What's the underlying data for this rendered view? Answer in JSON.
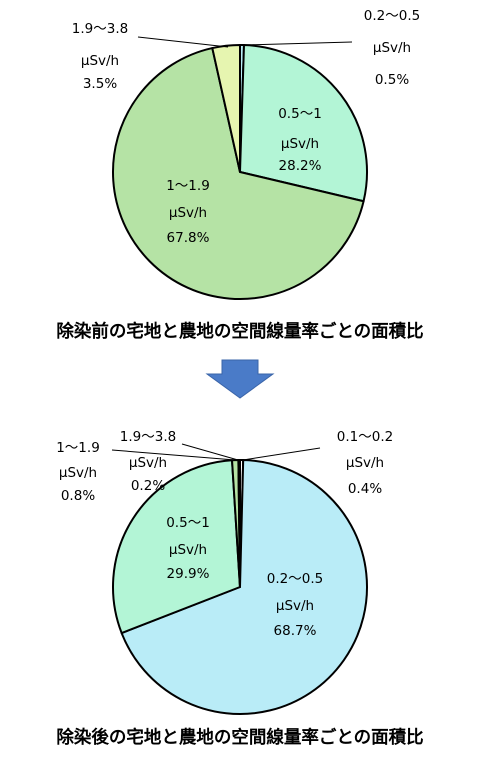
{
  "chart_data": [
    {
      "type": "pie",
      "title": "除染前の宅地と農地の空間線量率ごとの面積比",
      "categories": [
        "0.2～0.5",
        "0.5～1",
        "1～1.9",
        "1.9～3.8"
      ],
      "unit": "μSv/h",
      "values": [
        0.5,
        28.2,
        67.8,
        3.5
      ],
      "value_labels": [
        "0.5%",
        "28.2%",
        "67.8%",
        "3.5%"
      ],
      "colors": [
        "#b9eef7",
        "#b3f5d6",
        "#b5e3a5",
        "#e6f5b0"
      ]
    },
    {
      "type": "pie",
      "title": "除染後の宅地と農地の空間線量率ごとの面積比",
      "categories": [
        "0.1～0.2",
        "0.2～0.5",
        "0.5～1",
        "1～1.9",
        "1.9～3.8"
      ],
      "unit": "μSv/h",
      "values": [
        0.4,
        68.7,
        29.9,
        0.8,
        0.2
      ],
      "value_labels": [
        "0.4%",
        "68.7%",
        "29.9%",
        "0.8%",
        "0.2%"
      ],
      "colors": [
        "#ffffff",
        "#b9ecf7",
        "#b3f5d6",
        "#b5e3a5",
        "#e6f5b0"
      ]
    }
  ],
  "arrow": {
    "color": "#4a7bc8",
    "direction": "down"
  }
}
